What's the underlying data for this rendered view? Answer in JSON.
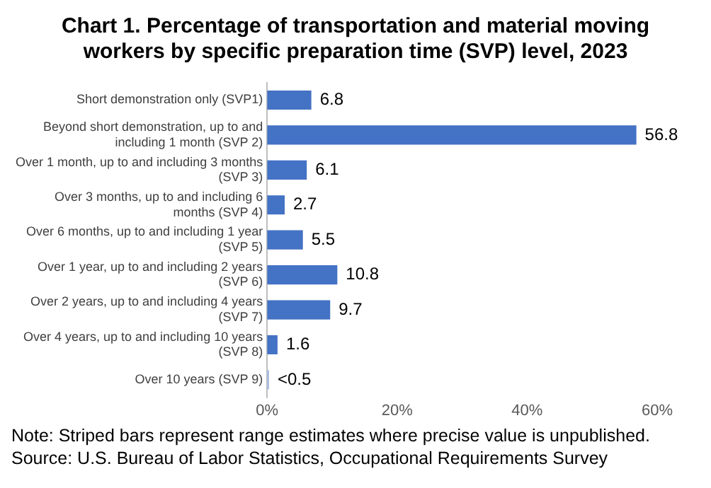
{
  "chart_data": {
    "type": "bar",
    "orientation": "horizontal",
    "title": "Chart 1. Percentage of transportation and material moving workers by specific preparation time (SVP) level, 2023",
    "categories": [
      "Short demonstration only (SVP1)",
      "Beyond short demonstration, up to and including 1 month (SVP 2)",
      "Over 1 month, up to and including 3 months (SVP 3)",
      "Over 3 months, up to and including 6 months (SVP 4)",
      "Over 6 months, up to and including 1 year (SVP 5)",
      "Over 1 year, up to and including 2 years (SVP 6)",
      "Over 2 years, up to and including 4 years (SVP 7)",
      "Over 4 years, up to and including 10 years (SVP 8)",
      "Over 10 years (SVP 9)"
    ],
    "values": [
      6.8,
      56.8,
      6.1,
      2.7,
      5.5,
      10.8,
      9.7,
      1.6,
      0.3
    ],
    "value_labels": [
      "6.8",
      "56.8",
      "6.1",
      "2.7",
      "5.5",
      "10.8",
      "9.7",
      "1.6",
      "<0.5"
    ],
    "colors": [
      "#4472c4",
      "#4472c4",
      "#4472c4",
      "#4472c4",
      "#4472c4",
      "#4472c4",
      "#4472c4",
      "#4472c4",
      "#a9bde4"
    ],
    "xlim": [
      0,
      60
    ],
    "xticks": [
      {
        "value": 0,
        "label": "0%"
      },
      {
        "value": 20,
        "label": "20%"
      },
      {
        "value": 40,
        "label": "40%"
      },
      {
        "value": 60,
        "label": "60%"
      }
    ],
    "grid": false,
    "annotations": [
      "Note: Striped bars represent range estimates where precise value is unpublished.",
      "Source: U.S. Bureau of Labor Statistics, Occupational Requirements Survey"
    ]
  }
}
